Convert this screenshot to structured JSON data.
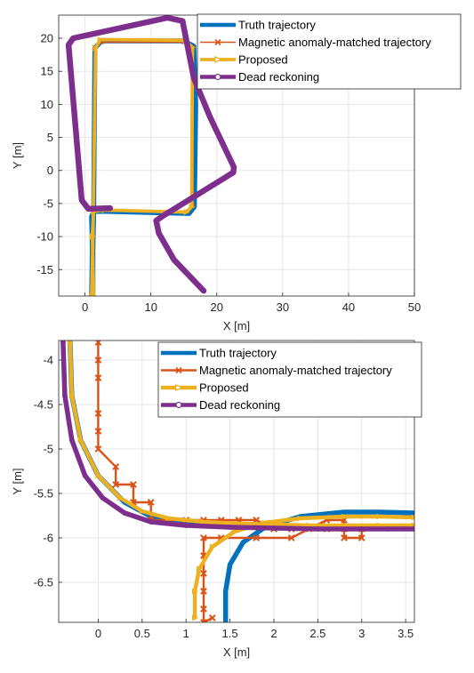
{
  "colors": {
    "truth": "#0072BD",
    "magnetic": "#D95319",
    "proposed": "#EDB120",
    "dead_reckoning": "#7E2F8E",
    "grid": "#e6e6e6",
    "axis": "#262626"
  },
  "chart_data": [
    {
      "type": "line",
      "xlabel": "X [m]",
      "ylabel": "Y [m]",
      "xlim": [
        -4,
        50
      ],
      "ylim": [
        -19,
        23.5
      ],
      "xticks": [
        0,
        10,
        20,
        30,
        40,
        50
      ],
      "yticks": [
        -15,
        -10,
        -5,
        0,
        5,
        10,
        15,
        20
      ],
      "grid": true,
      "legend_position": "top-right",
      "series": [
        {
          "name": "Truth trajectory",
          "x": [
            1.2,
            1.2,
            1.3,
            1.5,
            2.5,
            15.0,
            16.5,
            16.8,
            16.6,
            15.8,
            3.0,
            1.3,
            1.0,
            1.1,
            1.0
          ],
          "y": [
            -19,
            -12,
            -7,
            18.5,
            19.6,
            19.6,
            18.8,
            10,
            -5.5,
            -6.5,
            -6.2,
            -6.2,
            -7,
            -12,
            -19
          ]
        },
        {
          "name": "Magnetic anomaly-matched trajectory",
          "x": [
            1.3,
            1.4,
            2.5,
            15.0,
            16.3,
            16.4,
            15.6,
            3.0,
            1.3,
            1.2,
            1.2
          ],
          "y": [
            -6,
            18.6,
            19.4,
            19.4,
            18.6,
            -5.4,
            -6.2,
            -6.0,
            -6.0,
            -12,
            -19
          ]
        },
        {
          "name": "Proposed",
          "x": [
            1.0,
            1.2,
            1.6,
            2.3,
            15.2,
            16.3,
            16.2,
            15.4,
            3.0,
            1.3,
            1.1,
            1.3
          ],
          "y": [
            -19,
            -10,
            18.5,
            19.8,
            19.7,
            18.6,
            -5.5,
            -6.3,
            -6.0,
            -6.2,
            -10,
            -19
          ]
        },
        {
          "name": "Dead reckoning",
          "x": [
            3.8,
            0.5,
            -0.5,
            -2.5,
            -1.8,
            12.5,
            14.8,
            16.5,
            19.0,
            22.6,
            22.5,
            11.8,
            10.8,
            11.2,
            13.5,
            18.0
          ],
          "y": [
            -5.7,
            -5.8,
            -4.5,
            19.0,
            20.0,
            23.1,
            22.6,
            14.0,
            8.0,
            0.5,
            -0.3,
            -6.9,
            -7.6,
            -9.5,
            -13.5,
            -18.2
          ]
        }
      ]
    },
    {
      "type": "line",
      "xlabel": "X [m]",
      "ylabel": "Y [m]",
      "xlim": [
        -0.45,
        3.6
      ],
      "ylim": [
        -6.95,
        -3.78
      ],
      "xticks": [
        0,
        0.5,
        1,
        1.5,
        2,
        2.5,
        3,
        3.5
      ],
      "yticks": [
        -6.5,
        -6,
        -5.5,
        -5,
        -4.5,
        -4
      ],
      "grid": true,
      "legend_position": "top-right",
      "series": [
        {
          "name": "Truth trajectory",
          "x": [
            -0.32,
            -0.3,
            -0.2,
            0.0,
            0.3,
            0.6,
            1.0,
            1.4,
            1.8,
            2.2,
            2.6,
            3.0,
            3.6,
            1.45,
            1.45,
            1.5,
            1.65,
            1.9,
            2.3,
            2.8,
            3.2,
            3.6
          ],
          "y": [
            -3.8,
            -4.4,
            -4.9,
            -5.3,
            -5.6,
            -5.76,
            -5.83,
            -5.86,
            -5.87,
            -5.88,
            -5.88,
            -5.88,
            -5.88,
            -6.95,
            -6.6,
            -6.3,
            -6.05,
            -5.88,
            -5.76,
            -5.71,
            -5.71,
            -5.72
          ]
        },
        {
          "name": "Magnetic anomaly-matched trajectory",
          "x": [
            0.0,
            0.0,
            0.0,
            0.0,
            0.0,
            0.0,
            0.2,
            0.2,
            0.4,
            0.4,
            0.6,
            0.6,
            1.0,
            1.2,
            1.4,
            1.6,
            1.8,
            2.0,
            2.2,
            2.4,
            2.6,
            2.8,
            3.0,
            3.0,
            2.8,
            2.8,
            2.6,
            2.2,
            1.8,
            1.4,
            1.2,
            1.2,
            1.2,
            1.2,
            1.2,
            1.2,
            1.2,
            1.3
          ],
          "y": [
            -3.8,
            -4.0,
            -4.2,
            -4.6,
            -4.8,
            -5.0,
            -5.2,
            -5.4,
            -5.4,
            -5.6,
            -5.6,
            -5.8,
            -5.8,
            -5.8,
            -5.8,
            -5.8,
            -5.8,
            -5.9,
            -5.9,
            -5.9,
            -5.9,
            -5.9,
            -5.9,
            -6.0,
            -6.0,
            -5.8,
            -5.8,
            -6.0,
            -6.0,
            -6.0,
            -6.0,
            -6.2,
            -6.4,
            -6.6,
            -6.8,
            -7.0,
            -6.95,
            -6.9
          ]
        },
        {
          "name": "Proposed",
          "x": [
            -0.32,
            -0.3,
            -0.2,
            0.0,
            0.25,
            0.5,
            0.8,
            1.2,
            1.6,
            2.0,
            2.4,
            2.8,
            3.2,
            3.6,
            1.1,
            1.1,
            1.15,
            1.3,
            1.55,
            1.9,
            2.3,
            2.8,
            3.2,
            3.6
          ],
          "y": [
            -3.8,
            -4.4,
            -4.9,
            -5.3,
            -5.55,
            -5.7,
            -5.78,
            -5.82,
            -5.84,
            -5.85,
            -5.86,
            -5.86,
            -5.86,
            -5.86,
            -6.9,
            -6.6,
            -6.35,
            -6.1,
            -5.93,
            -5.83,
            -5.78,
            -5.76,
            -5.76,
            -5.77
          ]
        },
        {
          "name": "Dead reckoning",
          "x": [
            -0.4,
            -0.38,
            -0.3,
            -0.15,
            0.05,
            0.3,
            0.6,
            1.0,
            1.5,
            2.0,
            2.5,
            3.0,
            3.3,
            3.6
          ],
          "y": [
            -3.8,
            -4.4,
            -4.9,
            -5.3,
            -5.55,
            -5.72,
            -5.82,
            -5.86,
            -5.88,
            -5.89,
            -5.9,
            -5.9,
            -5.9,
            -5.9
          ]
        }
      ]
    }
  ]
}
